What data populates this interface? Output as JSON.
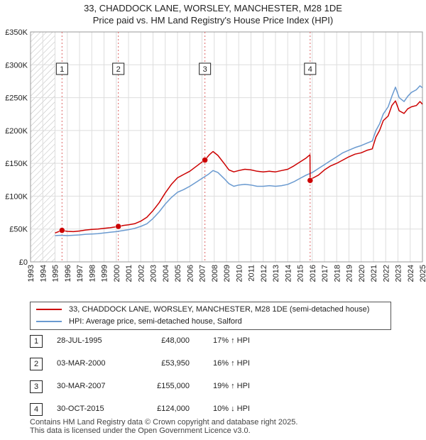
{
  "chart_data": {
    "type": "line",
    "title": "33, CHADDOCK LANE, WORSLEY, MANCHESTER, M28 1DE",
    "subtitle": "Price paid vs. HM Land Registry's House Price Index (HPI)",
    "xlabel": "",
    "ylabel": "",
    "xlim": [
      1993,
      2025
    ],
    "ylim": [
      0,
      350000
    ],
    "x_ticks": [
      1993,
      1994,
      1995,
      1996,
      1997,
      1998,
      1999,
      2000,
      2001,
      2002,
      2003,
      2004,
      2005,
      2006,
      2007,
      2008,
      2009,
      2010,
      2011,
      2012,
      2013,
      2014,
      2015,
      2016,
      2017,
      2018,
      2019,
      2020,
      2021,
      2022,
      2023,
      2024,
      2025
    ],
    "y_ticks": [
      {
        "value": 0,
        "label": "£0"
      },
      {
        "value": 50000,
        "label": "£50K"
      },
      {
        "value": 100000,
        "label": "£100K"
      },
      {
        "value": 150000,
        "label": "£150K"
      },
      {
        "value": 200000,
        "label": "£200K"
      },
      {
        "value": 250000,
        "label": "£250K"
      },
      {
        "value": 300000,
        "label": "£300K"
      },
      {
        "value": 350000,
        "label": "£350K"
      }
    ],
    "hatched_region": [
      1993,
      1995
    ],
    "grid": true,
    "series": [
      {
        "name": "33, CHADDOCK LANE, WORSLEY, MANCHESTER, M28 1DE (semi-detached house)",
        "color": "#cc0000",
        "points": [
          [
            1995.0,
            44000
          ],
          [
            1995.57,
            48000
          ],
          [
            1996.0,
            46500
          ],
          [
            1996.5,
            46000
          ],
          [
            1997.0,
            47000
          ],
          [
            1997.5,
            48500
          ],
          [
            1998.0,
            49500
          ],
          [
            1998.5,
            50000
          ],
          [
            1999.0,
            51000
          ],
          [
            1999.5,
            52000
          ],
          [
            2000.17,
            53950
          ],
          [
            2000.6,
            55500
          ],
          [
            2001.0,
            56500
          ],
          [
            2001.5,
            58000
          ],
          [
            2002.0,
            62000
          ],
          [
            2002.5,
            68000
          ],
          [
            2003.0,
            78000
          ],
          [
            2003.5,
            90000
          ],
          [
            2004.0,
            105000
          ],
          [
            2004.5,
            118000
          ],
          [
            2005.0,
            128000
          ],
          [
            2005.5,
            133000
          ],
          [
            2006.0,
            138000
          ],
          [
            2006.5,
            145000
          ],
          [
            2007.0,
            152000
          ],
          [
            2007.24,
            155000
          ],
          [
            2007.6,
            163000
          ],
          [
            2007.9,
            168000
          ],
          [
            2008.3,
            162000
          ],
          [
            2008.8,
            150000
          ],
          [
            2009.2,
            140000
          ],
          [
            2009.6,
            137000
          ],
          [
            2010.0,
            139000
          ],
          [
            2010.5,
            141000
          ],
          [
            2011.0,
            140000
          ],
          [
            2011.5,
            138000
          ],
          [
            2012.0,
            137000
          ],
          [
            2012.5,
            138000
          ],
          [
            2013.0,
            137000
          ],
          [
            2013.5,
            139000
          ],
          [
            2014.0,
            141000
          ],
          [
            2014.5,
            146000
          ],
          [
            2015.0,
            152000
          ],
          [
            2015.5,
            158000
          ],
          [
            2015.82,
            163000
          ],
          [
            2015.83,
            124000
          ],
          [
            2016.0,
            127000
          ],
          [
            2016.5,
            132000
          ],
          [
            2017.0,
            140000
          ],
          [
            2017.5,
            146000
          ],
          [
            2018.0,
            150000
          ],
          [
            2018.5,
            155000
          ],
          [
            2019.0,
            160000
          ],
          [
            2019.5,
            164000
          ],
          [
            2020.0,
            166000
          ],
          [
            2020.5,
            170000
          ],
          [
            2020.9,
            172000
          ],
          [
            2021.2,
            190000
          ],
          [
            2021.5,
            200000
          ],
          [
            2021.8,
            215000
          ],
          [
            2022.2,
            222000
          ],
          [
            2022.5,
            238000
          ],
          [
            2022.8,
            245000
          ],
          [
            2023.1,
            230000
          ],
          [
            2023.5,
            226000
          ],
          [
            2023.8,
            233000
          ],
          [
            2024.1,
            236000
          ],
          [
            2024.5,
            238000
          ],
          [
            2024.8,
            244000
          ],
          [
            2025.0,
            240000
          ]
        ]
      },
      {
        "name": "HPI: Average price, semi-detached house, Salford",
        "color": "#6a9ad0",
        "points": [
          [
            1995.0,
            40000
          ],
          [
            1995.5,
            40500
          ],
          [
            1996.0,
            40000
          ],
          [
            1996.5,
            40500
          ],
          [
            1997.0,
            41000
          ],
          [
            1997.5,
            42000
          ],
          [
            1998.0,
            42500
          ],
          [
            1998.5,
            43000
          ],
          [
            1999.0,
            44000
          ],
          [
            1999.5,
            45000
          ],
          [
            2000.0,
            46000
          ],
          [
            2000.5,
            47500
          ],
          [
            2001.0,
            49000
          ],
          [
            2001.5,
            51000
          ],
          [
            2002.0,
            54000
          ],
          [
            2002.5,
            58000
          ],
          [
            2003.0,
            66000
          ],
          [
            2003.5,
            76000
          ],
          [
            2004.0,
            88000
          ],
          [
            2004.5,
            98000
          ],
          [
            2005.0,
            106000
          ],
          [
            2005.5,
            110000
          ],
          [
            2006.0,
            115000
          ],
          [
            2006.5,
            121000
          ],
          [
            2007.0,
            127000
          ],
          [
            2007.5,
            133000
          ],
          [
            2007.9,
            139000
          ],
          [
            2008.3,
            136000
          ],
          [
            2008.8,
            127000
          ],
          [
            2009.2,
            119000
          ],
          [
            2009.6,
            115000
          ],
          [
            2010.0,
            117000
          ],
          [
            2010.5,
            118000
          ],
          [
            2011.0,
            117000
          ],
          [
            2011.5,
            115000
          ],
          [
            2012.0,
            115000
          ],
          [
            2012.5,
            116000
          ],
          [
            2013.0,
            115000
          ],
          [
            2013.5,
            116000
          ],
          [
            2014.0,
            118000
          ],
          [
            2014.5,
            122000
          ],
          [
            2015.0,
            127000
          ],
          [
            2015.5,
            132000
          ],
          [
            2016.0,
            136000
          ],
          [
            2016.5,
            142000
          ],
          [
            2017.0,
            148000
          ],
          [
            2017.5,
            154000
          ],
          [
            2018.0,
            160000
          ],
          [
            2018.5,
            166000
          ],
          [
            2019.0,
            170000
          ],
          [
            2019.5,
            174000
          ],
          [
            2020.0,
            177000
          ],
          [
            2020.5,
            181000
          ],
          [
            2020.9,
            184000
          ],
          [
            2021.2,
            200000
          ],
          [
            2021.5,
            210000
          ],
          [
            2021.8,
            225000
          ],
          [
            2022.2,
            236000
          ],
          [
            2022.5,
            252000
          ],
          [
            2022.8,
            266000
          ],
          [
            2023.1,
            250000
          ],
          [
            2023.5,
            244000
          ],
          [
            2023.8,
            252000
          ],
          [
            2024.1,
            258000
          ],
          [
            2024.5,
            262000
          ],
          [
            2024.8,
            268000
          ],
          [
            2025.0,
            265000
          ]
        ]
      }
    ],
    "events": [
      {
        "id": "1",
        "x": 1995.57,
        "value": 48000
      },
      {
        "id": "2",
        "x": 2000.17,
        "value": 53950
      },
      {
        "id": "3",
        "x": 2007.24,
        "value": 155000
      },
      {
        "id": "4",
        "x": 2015.83,
        "value": 124000
      }
    ]
  },
  "legend": {
    "property_label": "33, CHADDOCK LANE, WORSLEY, MANCHESTER, M28 1DE (semi-detached house)",
    "hpi_label": "HPI: Average price, semi-detached house, Salford"
  },
  "transactions": [
    {
      "num": "1",
      "date": "28-JUL-1995",
      "price": "£48,000",
      "hpi": "17% ↑ HPI"
    },
    {
      "num": "2",
      "date": "03-MAR-2000",
      "price": "£53,950",
      "hpi": "16% ↑ HPI"
    },
    {
      "num": "3",
      "date": "30-MAR-2007",
      "price": "£155,000",
      "hpi": "19% ↑ HPI"
    },
    {
      "num": "4",
      "date": "30-OCT-2015",
      "price": "£124,000",
      "hpi": "10% ↓ HPI"
    }
  ],
  "footer": {
    "line1": "Contains HM Land Registry data © Crown copyright and database right 2025.",
    "line2": "This data is licensed under the Open Government Licence v3.0."
  }
}
